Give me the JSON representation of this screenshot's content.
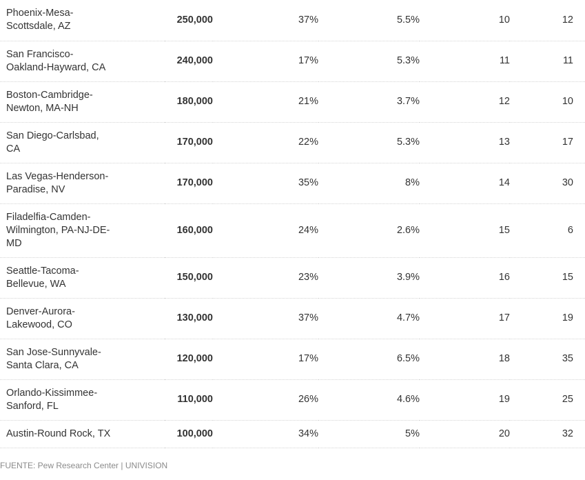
{
  "table": {
    "rows": [
      {
        "metro": "Phoenix-Mesa-Scottsdale, AZ",
        "metro_lines": [
          "Phoenix-Mesa-",
          "Scottsdale, AZ"
        ],
        "population": "250,000",
        "share": "37%",
        "pct": "5.5%",
        "rank_a": "10",
        "rank_b": "12"
      },
      {
        "metro": "San Francisco-Oakland-Hayward, CA",
        "metro_lines": [
          "San Francisco-",
          "Oakland-Hayward, CA"
        ],
        "population": "240,000",
        "share": "17%",
        "pct": "5.3%",
        "rank_a": "11",
        "rank_b": "11"
      },
      {
        "metro": "Boston-Cambridge-Newton, MA-NH",
        "metro_lines": [
          "Boston-Cambridge-",
          "Newton, MA-NH"
        ],
        "population": "180,000",
        "share": "21%",
        "pct": "3.7%",
        "rank_a": "12",
        "rank_b": "10"
      },
      {
        "metro": "San Diego-Carlsbad, CA",
        "metro_lines": [
          "San Diego-Carlsbad,",
          "CA"
        ],
        "population": "170,000",
        "share": "22%",
        "pct": "5.3%",
        "rank_a": "13",
        "rank_b": "17"
      },
      {
        "metro": "Las Vegas-Henderson-Paradise, NV",
        "metro_lines": [
          "Las Vegas-Henderson-",
          "Paradise, NV"
        ],
        "population": "170,000",
        "share": "35%",
        "pct": "8%",
        "rank_a": "14",
        "rank_b": "30"
      },
      {
        "metro": "Filadelfia-Camden-Wilmington, PA-NJ-DE-MD",
        "metro_lines": [
          "Filadelfia-Camden-",
          "Wilmington, PA-NJ-DE-",
          "MD"
        ],
        "population": "160,000",
        "share": "24%",
        "pct": "2.6%",
        "rank_a": "15",
        "rank_b": "6"
      },
      {
        "metro": "Seattle-Tacoma-Bellevue, WA",
        "metro_lines": [
          "Seattle-Tacoma-",
          "Bellevue, WA"
        ],
        "population": "150,000",
        "share": "23%",
        "pct": "3.9%",
        "rank_a": "16",
        "rank_b": "15"
      },
      {
        "metro": "Denver-Aurora-Lakewood, CO",
        "metro_lines": [
          "Denver-Aurora-",
          "Lakewood, CO"
        ],
        "population": "130,000",
        "share": "37%",
        "pct": "4.7%",
        "rank_a": "17",
        "rank_b": "19"
      },
      {
        "metro": "San Jose-Sunnyvale-Santa Clara, CA",
        "metro_lines": [
          "San Jose-Sunnyvale-",
          "Santa Clara, CA"
        ],
        "population": "120,000",
        "share": "17%",
        "pct": "6.5%",
        "rank_a": "18",
        "rank_b": "35"
      },
      {
        "metro": "Orlando-Kissimmee-Sanford, FL",
        "metro_lines": [
          "Orlando-Kissimmee-",
          "Sanford, FL"
        ],
        "population": "110,000",
        "share": "26%",
        "pct": "4.6%",
        "rank_a": "19",
        "rank_b": "25"
      },
      {
        "metro": "Austin-Round Rock, TX",
        "metro_lines": [
          "Austin-Round Rock, TX"
        ],
        "population": "100,000",
        "share": "34%",
        "pct": "5%",
        "rank_a": "20",
        "rank_b": "32"
      }
    ]
  },
  "footer": {
    "source_prefix": "FUENTE: Pew Research Center",
    "separator": "|",
    "publisher": "UNIVISION"
  }
}
